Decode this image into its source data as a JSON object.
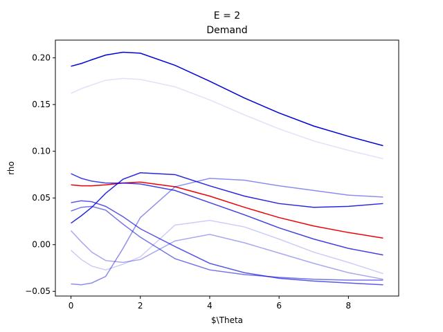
{
  "chart_data": {
    "type": "line",
    "title": "E = 2",
    "subtitle": "Demand",
    "xlabel": "$\\Theta",
    "ylabel": "rho",
    "xlim": [
      -0.45,
      9.45
    ],
    "ylim": [
      -0.055,
      0.219
    ],
    "xticks": [
      0,
      2,
      4,
      6,
      8
    ],
    "xtick_labels": [
      "0",
      "2",
      "4",
      "6",
      "8"
    ],
    "yticks": [
      -0.05,
      0.0,
      0.05,
      0.1,
      0.15,
      0.2
    ],
    "ytick_labels": [
      "−0.05",
      "0.00",
      "0.05",
      "0.10",
      "0.15",
      "0.20"
    ],
    "grid": false,
    "x": [
      0,
      0.3,
      0.6,
      1,
      1.5,
      2,
      3,
      4,
      5,
      6,
      7,
      8,
      9
    ],
    "series": [
      {
        "color": "#0000dd",
        "opacity": 1.0,
        "values": [
          0.191,
          0.194,
          0.198,
          0.203,
          0.206,
          0.205,
          0.192,
          0.175,
          0.157,
          0.141,
          0.127,
          0.116,
          0.106
        ]
      },
      {
        "color": "#0000dd",
        "opacity": 0.12,
        "values": [
          0.162,
          0.167,
          0.171,
          0.176,
          0.178,
          0.177,
          0.169,
          0.155,
          0.139,
          0.124,
          0.111,
          0.101,
          0.092
        ]
      },
      {
        "color": "#ee0000",
        "opacity": 1.0,
        "values": [
          0.064,
          0.063,
          0.063,
          0.064,
          0.066,
          0.067,
          0.062,
          0.052,
          0.04,
          0.029,
          0.02,
          0.013,
          0.007
        ]
      },
      {
        "color": "#0000dd",
        "opacity": 0.75,
        "values": [
          0.076,
          0.071,
          0.068,
          0.066,
          0.066,
          0.065,
          0.058,
          0.045,
          0.032,
          0.018,
          0.006,
          -0.004,
          -0.011
        ]
      },
      {
        "color": "#0000dd",
        "opacity": 0.85,
        "values": [
          0.023,
          0.031,
          0.04,
          0.055,
          0.07,
          0.077,
          0.075,
          0.063,
          0.052,
          0.044,
          0.04,
          0.041,
          0.044
        ]
      },
      {
        "color": "#0000dd",
        "opacity": 0.45,
        "values": [
          -0.042,
          -0.043,
          -0.041,
          -0.034,
          -0.004,
          0.029,
          0.062,
          0.071,
          0.069,
          0.063,
          0.058,
          0.053,
          0.051
        ]
      },
      {
        "color": "#0000dd",
        "opacity": 0.65,
        "values": [
          0.045,
          0.047,
          0.046,
          0.041,
          0.03,
          0.017,
          -0.002,
          -0.02,
          -0.03,
          -0.036,
          -0.039,
          -0.041,
          -0.043
        ]
      },
      {
        "color": "#0000dd",
        "opacity": 0.55,
        "values": [
          0.036,
          0.04,
          0.041,
          0.037,
          0.022,
          0.008,
          -0.015,
          -0.027,
          -0.032,
          -0.035,
          -0.037,
          -0.038,
          -0.038
        ]
      },
      {
        "color": "#0000dd",
        "opacity": 0.35,
        "values": [
          0.015,
          0.003,
          -0.008,
          -0.017,
          -0.019,
          -0.016,
          0.004,
          0.011,
          0.002,
          -0.009,
          -0.02,
          -0.03,
          -0.037
        ]
      },
      {
        "color": "#0000dd",
        "opacity": 0.2,
        "values": [
          -0.006,
          -0.016,
          -0.023,
          -0.027,
          -0.021,
          -0.013,
          0.021,
          0.026,
          0.019,
          0.006,
          -0.008,
          -0.019,
          -0.031
        ]
      }
    ]
  }
}
